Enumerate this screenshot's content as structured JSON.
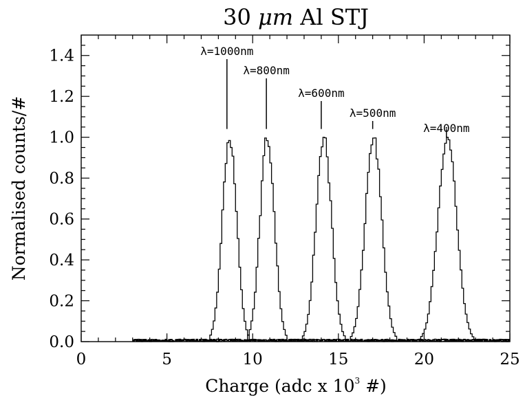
{
  "chart_data": {
    "type": "line",
    "title_parts": [
      "30 ",
      "μm",
      " Al STJ"
    ],
    "xlabel_parts": [
      "Charge (adc x 10",
      "3",
      " #)"
    ],
    "ylabel": "Normalised counts/#",
    "xlim": [
      0,
      25
    ],
    "ylim": [
      0,
      1.5
    ],
    "xticks": [
      "0",
      "5",
      "10",
      "15",
      "20",
      "25"
    ],
    "yticks": [
      "0.0",
      "0.2",
      "0.4",
      "0.6",
      "0.8",
      "1.0",
      "1.2",
      "1.4"
    ],
    "grid": false,
    "annotations": [
      {
        "label": "λ=1000nm",
        "x": 8.5
      },
      {
        "label": "λ=800nm",
        "x": 10.8
      },
      {
        "label": "λ=600nm",
        "x": 14.0
      },
      {
        "label": "λ=500nm",
        "x": 17.0
      },
      {
        "label": "λ=400nm",
        "x": 21.3
      }
    ],
    "series": [
      {
        "center": 8.6,
        "sigma": 0.42,
        "peak": 1.0
      },
      {
        "center": 10.8,
        "sigma": 0.42,
        "peak": 1.0
      },
      {
        "center": 14.1,
        "sigma": 0.45,
        "peak": 1.0
      },
      {
        "center": 17.0,
        "sigma": 0.48,
        "peak": 1.0
      },
      {
        "center": 21.3,
        "sigma": 0.55,
        "peak": 1.0
      }
    ]
  }
}
